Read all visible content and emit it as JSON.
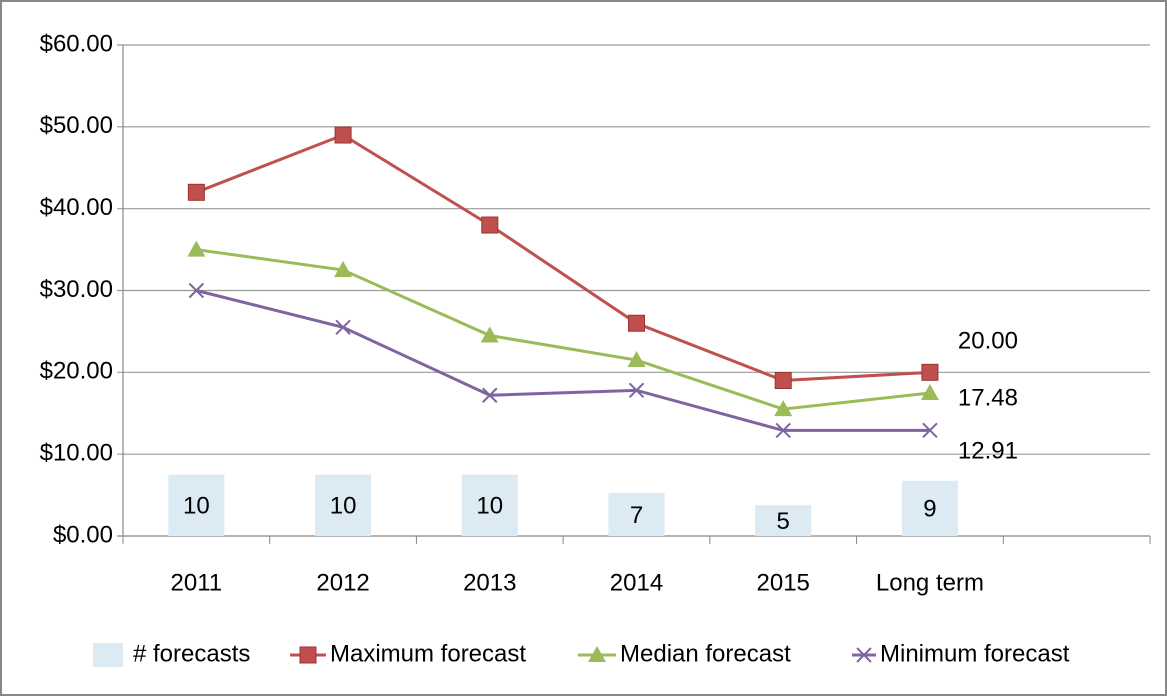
{
  "chart_data": {
    "type": "line",
    "categories": [
      "2011",
      "2012",
      "2013",
      "2014",
      "2015",
      "Long term",
      null
    ],
    "series": [
      {
        "name": "# forecasts",
        "type": "bar",
        "axis": "y2",
        "color": "#dbeaf3",
        "values": [
          10,
          10,
          10,
          7,
          5,
          9,
          null
        ]
      },
      {
        "name": "Maximum forecast",
        "type": "line",
        "marker": "square",
        "color": "#c0504d",
        "values": [
          42,
          49,
          38,
          26,
          19,
          20,
          null
        ],
        "value_labels": [
          null,
          null,
          null,
          null,
          null,
          "20.00",
          null
        ]
      },
      {
        "name": "Median forecast",
        "type": "line",
        "marker": "triangle",
        "color": "#9bbb59",
        "values": [
          35,
          32.5,
          24.5,
          21.5,
          15.5,
          17.48,
          null
        ],
        "value_labels": [
          null,
          null,
          null,
          null,
          null,
          "17.48",
          null
        ]
      },
      {
        "name": "Minimum forecast",
        "type": "line",
        "marker": "x",
        "color": "#8064a2",
        "values": [
          30,
          25.5,
          17.2,
          17.8,
          12.9,
          12.91,
          null
        ],
        "value_labels": [
          null,
          null,
          null,
          null,
          null,
          "12.91",
          null
        ]
      }
    ],
    "ylim": [
      0,
      60
    ],
    "yticks": [
      {
        "value": 0,
        "label": "$0.00"
      },
      {
        "value": 10,
        "label": "$10.00"
      },
      {
        "value": 20,
        "label": "$20.00"
      },
      {
        "value": 30,
        "label": "$30.00"
      },
      {
        "value": 40,
        "label": "$40.00"
      },
      {
        "value": 50,
        "label": "$50.00"
      },
      {
        "value": 60,
        "label": "$60.00"
      }
    ],
    "y2lim": [
      0,
      80
    ],
    "grid": true,
    "legend": "bottom"
  }
}
